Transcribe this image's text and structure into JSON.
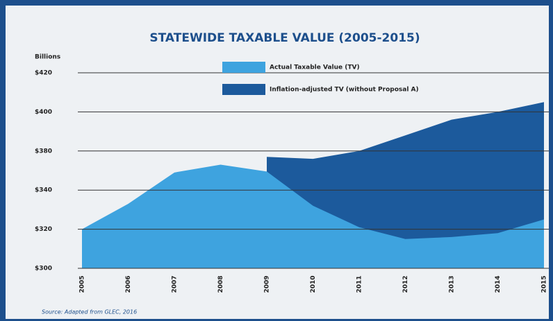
{
  "chart_data": {
    "type": "area",
    "title": "STATEWIDE TAXABLE VALUE (2005-2015)",
    "y_label": "Billions",
    "source": "Source: Adapted from GLEC, 2016",
    "categories": [
      "2005",
      "2006",
      "2007",
      "2008",
      "2009",
      "2010",
      "2011",
      "2012",
      "2013",
      "2014",
      "2015"
    ],
    "series": [
      {
        "name": "Inflation-adjusted TV (without Proposal A)",
        "color": "#1c5a9c",
        "values": [
          null,
          null,
          null,
          null,
          374,
          372,
          380,
          388,
          396,
          400,
          405
        ]
      },
      {
        "name": "Actual Taxable Value (TV)",
        "color": "#3ea3df",
        "values": [
          320,
          333,
          358,
          366,
          359,
          332,
          321,
          315,
          316,
          318,
          325
        ]
      }
    ],
    "ylim": [
      300,
      420
    ],
    "yticks": [
      {
        "value": 300,
        "label": "$300"
      },
      {
        "value": 320,
        "label": "$320"
      },
      {
        "value": 340,
        "label": "$340"
      },
      {
        "value": 380,
        "label": "$380"
      },
      {
        "value": 400,
        "label": "$400"
      },
      {
        "value": 420,
        "label": "$420"
      }
    ],
    "grid": true
  }
}
